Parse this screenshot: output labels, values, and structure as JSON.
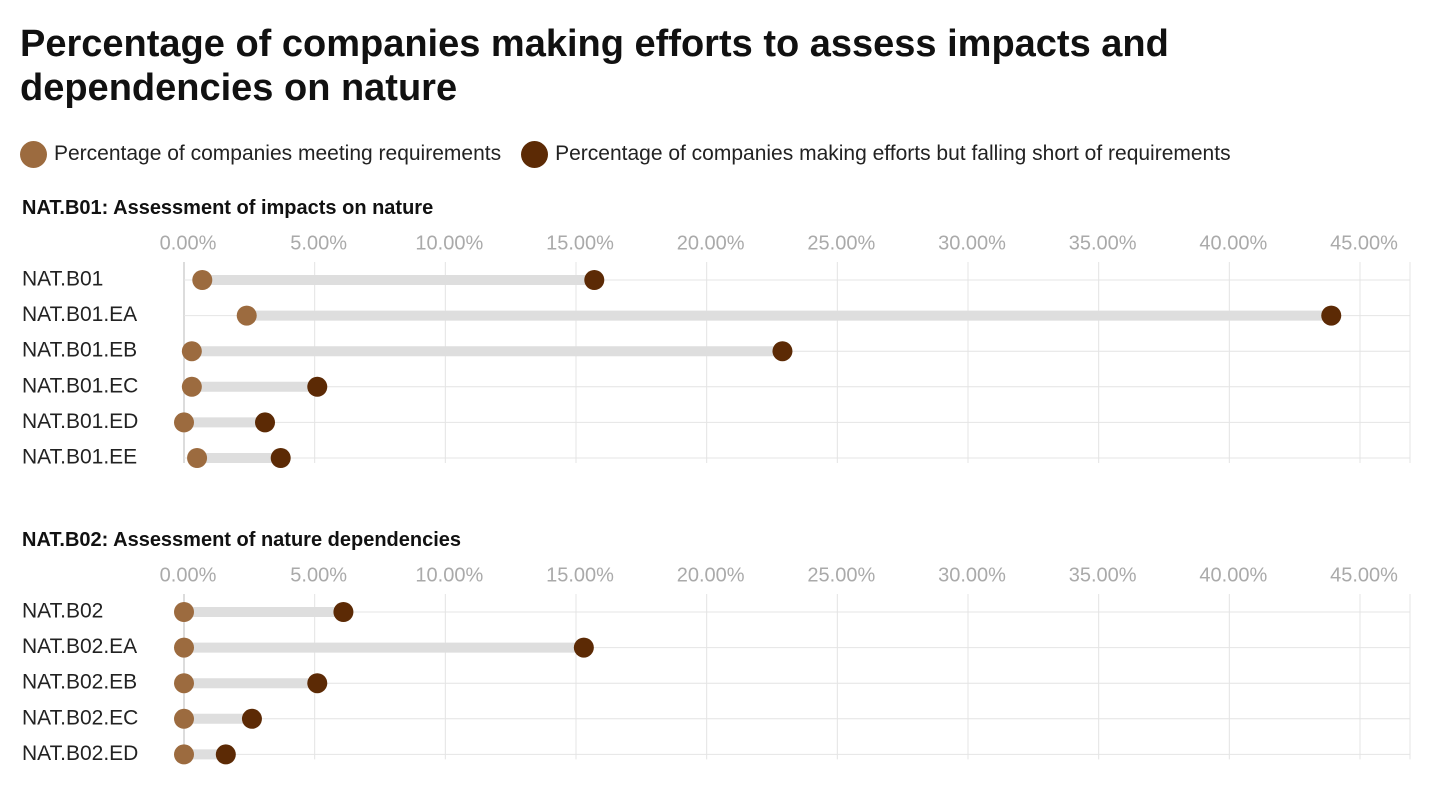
{
  "title": "Percentage of companies making efforts to assess impacts and dependencies on nature",
  "legend": [
    {
      "label": "Percentage of companies meeting requirements",
      "color": "#9c6b3f"
    },
    {
      "label": "Percentage of companies making efforts but falling short of requirements",
      "color": "#5c2a05"
    }
  ],
  "colors": {
    "meeting": "#9c6b3f",
    "short": "#5c2a05",
    "connector": "#dedede",
    "grid": "#e4e4e4",
    "tick_label": "#aaaaaa"
  },
  "chart_data": [
    {
      "type": "dumbbell",
      "title": "NAT.B01: Assessment of impacts on nature",
      "xlim": [
        0,
        45
      ],
      "x_ticks": [
        0,
        5,
        10,
        15,
        20,
        25,
        30,
        35,
        40,
        45
      ],
      "x_tick_labels": [
        "0.00%",
        "5.00%",
        "10.00%",
        "15.00%",
        "20.00%",
        "25.00%",
        "30.00%",
        "35.00%",
        "40.00%",
        "45.00%"
      ],
      "categories": [
        "NAT.B01",
        "NAT.B01.EA",
        "NAT.B01.EB",
        "NAT.B01.EC",
        "NAT.B01.ED",
        "NAT.B01.EE"
      ],
      "series": [
        {
          "name": "Percentage of companies meeting requirements",
          "values": [
            0.7,
            2.4,
            0.3,
            0.3,
            0.0,
            0.5
          ]
        },
        {
          "name": "Percentage of companies making efforts but falling short of requirements",
          "values": [
            15.7,
            43.9,
            22.9,
            5.1,
            3.1,
            3.7
          ]
        }
      ]
    },
    {
      "type": "dumbbell",
      "title": "NAT.B02: Assessment of nature dependencies",
      "xlim": [
        0,
        45
      ],
      "x_ticks": [
        0,
        5,
        10,
        15,
        20,
        25,
        30,
        35,
        40,
        45
      ],
      "x_tick_labels": [
        "0.00%",
        "5.00%",
        "10.00%",
        "15.00%",
        "20.00%",
        "25.00%",
        "30.00%",
        "35.00%",
        "40.00%",
        "45.00%"
      ],
      "categories": [
        "NAT.B02",
        "NAT.B02.EA",
        "NAT.B02.EB",
        "NAT.B02.EC",
        "NAT.B02.ED"
      ],
      "series": [
        {
          "name": "Percentage of companies meeting requirements",
          "values": [
            0.0,
            0.0,
            0.0,
            0.0,
            0.0
          ]
        },
        {
          "name": "Percentage of companies making efforts but falling short of requirements",
          "values": [
            6.1,
            15.3,
            5.1,
            2.6,
            1.6
          ]
        }
      ]
    }
  ]
}
